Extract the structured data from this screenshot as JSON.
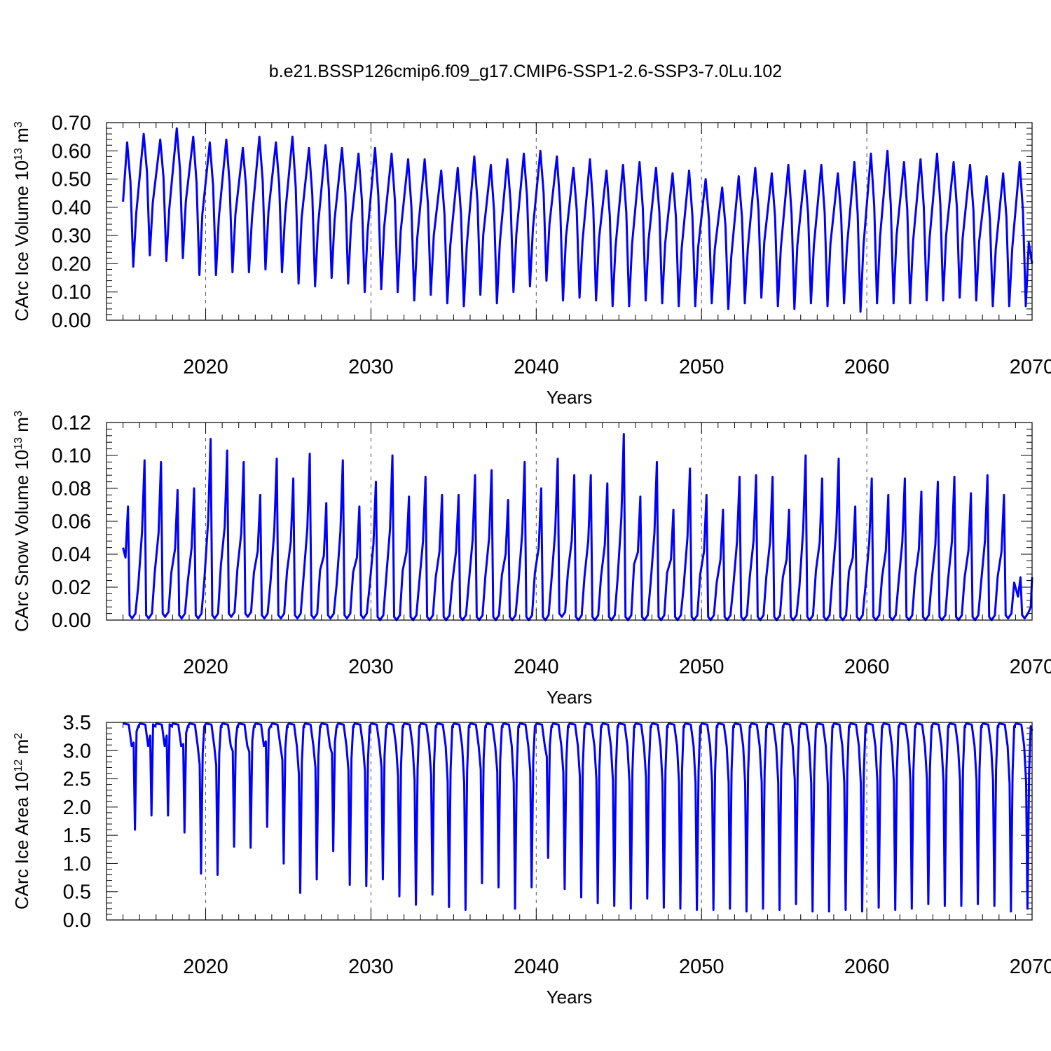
{
  "chart_data": [
    {
      "type": "line",
      "title": "b.e21.BSSP126cmip6.f09_g17.CMIP6-SSP1-2.6-SSP3-7.0Lu.102",
      "xlabel": "Years",
      "ylabel": {
        "main": "CArc Ice Volume 10",
        "exp": "13",
        "unit": " m",
        "unit_exp": "3"
      },
      "xlim": [
        2014,
        2070
      ],
      "ylim": [
        0,
        0.7
      ],
      "xticks": [
        2020,
        2030,
        2040,
        2050,
        2060,
        2070
      ],
      "xtick_labels": [
        "2020",
        "2030",
        "2040",
        "2050",
        "2060",
        "2070"
      ],
      "yticks": [
        0,
        0.1,
        0.2,
        0.3,
        0.4,
        0.5,
        0.6,
        0.7
      ],
      "ytick_labels": [
        "0.00",
        "0.10",
        "0.20",
        "0.30",
        "0.40",
        "0.50",
        "0.60",
        "0.70"
      ],
      "grid": "vertical dashed at decades",
      "color": "#0000ff",
      "series": [
        {
          "name": "Ice Volume",
          "start": 2015,
          "start_value": 0.42,
          "annual_max": [
            0.63,
            0.66,
            0.64,
            0.68,
            0.65,
            0.63,
            0.64,
            0.61,
            0.65,
            0.63,
            0.65,
            0.61,
            0.62,
            0.61,
            0.59,
            0.61,
            0.59,
            0.57,
            0.57,
            0.53,
            0.54,
            0.58,
            0.55,
            0.57,
            0.59,
            0.6,
            0.58,
            0.54,
            0.57,
            0.53,
            0.55,
            0.56,
            0.54,
            0.52,
            0.53,
            0.5,
            0.47,
            0.51,
            0.54,
            0.52,
            0.55,
            0.53,
            0.55,
            0.52,
            0.56,
            0.59,
            0.6,
            0.56,
            0.57,
            0.59,
            0.56,
            0.55,
            0.51,
            0.52,
            0.56
          ],
          "annual_min": [
            0.19,
            0.23,
            0.21,
            0.22,
            0.16,
            0.16,
            0.17,
            0.17,
            0.18,
            0.17,
            0.13,
            0.12,
            0.15,
            0.13,
            0.1,
            0.11,
            0.1,
            0.07,
            0.09,
            0.06,
            0.05,
            0.09,
            0.06,
            0.1,
            0.12,
            0.14,
            0.07,
            0.08,
            0.07,
            0.05,
            0.05,
            0.07,
            0.06,
            0.05,
            0.05,
            0.06,
            0.04,
            0.06,
            0.08,
            0.05,
            0.04,
            0.06,
            0.05,
            0.06,
            0.03,
            0.06,
            0.06,
            0.06,
            0.07,
            0.07,
            0.08,
            0.07,
            0.05,
            0.05,
            0.05
          ],
          "end_value": 0.2
        }
      ]
    },
    {
      "type": "line",
      "title": "",
      "xlabel": "Years",
      "ylabel": {
        "main": "CArc Snow Volume 10",
        "exp": "13",
        "unit": " m",
        "unit_exp": "3"
      },
      "xlim": [
        2014,
        2070
      ],
      "ylim": [
        0,
        0.12
      ],
      "xticks": [
        2020,
        2030,
        2040,
        2050,
        2060,
        2070
      ],
      "xtick_labels": [
        "2020",
        "2030",
        "2040",
        "2050",
        "2060",
        "2070"
      ],
      "yticks": [
        0,
        0.02,
        0.04,
        0.06,
        0.08,
        0.1,
        0.12
      ],
      "ytick_labels": [
        "0.00",
        "0.02",
        "0.04",
        "0.06",
        "0.08",
        "0.10",
        "0.12"
      ],
      "grid": "vertical dashed at decades",
      "color": "#0000ff",
      "series": [
        {
          "name": "Snow Volume",
          "start": 2015,
          "start_value": 0.044,
          "annual_max": [
            0.069,
            0.097,
            0.096,
            0.079,
            0.08,
            0.11,
            0.103,
            0.096,
            0.076,
            0.098,
            0.086,
            0.101,
            0.071,
            0.097,
            0.069,
            0.084,
            0.1,
            0.075,
            0.087,
            0.076,
            0.076,
            0.088,
            0.091,
            0.073,
            0.096,
            0.08,
            0.098,
            0.088,
            0.088,
            0.083,
            0.113,
            0.075,
            0.096,
            0.067,
            0.092,
            0.076,
            0.067,
            0.087,
            0.088,
            0.087,
            0.067,
            0.1,
            0.086,
            0.098,
            0.069,
            0.086,
            0.076,
            0.086,
            0.078,
            0.084,
            0.087,
            0.077,
            0.088,
            0.076,
            0.026
          ],
          "annual_min": [
            0.001,
            0.001,
            0.002,
            0.001,
            0.001,
            0.001,
            0.002,
            0.002,
            0.001,
            0.001,
            0.001,
            0.001,
            0.001,
            0.001,
            0.001,
            0.0,
            0.0,
            0.0,
            0.0,
            0.0,
            0.0,
            0.0,
            0.0,
            0.0,
            0.0,
            0.0,
            0.002,
            0.0,
            0.0,
            0.0,
            0.0,
            0.0,
            0.0,
            0.0,
            0.0,
            0.0,
            0.0,
            0.0,
            0.0,
            0.0,
            0.0,
            0.0,
            0.0,
            0.0,
            0.0,
            0.0,
            0.0,
            0.0,
            0.0,
            0.0,
            0.0,
            0.0,
            0.0,
            0.001,
            0.001
          ],
          "end_value": 0.026
        }
      ]
    },
    {
      "type": "line",
      "title": "",
      "xlabel": "Years",
      "ylabel": {
        "main": "CArc Ice Area 10",
        "exp": "12",
        "unit": " m",
        "unit_exp": "2"
      },
      "xlim": [
        2014,
        2070
      ],
      "ylim": [
        0,
        3.5
      ],
      "xticks": [
        2020,
        2030,
        2040,
        2050,
        2060,
        2070
      ],
      "xtick_labels": [
        "2020",
        "2030",
        "2040",
        "2050",
        "2060",
        "2070"
      ],
      "yticks": [
        0,
        0.5,
        1,
        1.5,
        2,
        2.5,
        3,
        3.5
      ],
      "ytick_labels": [
        "0.0",
        "0.5",
        "1.0",
        "1.5",
        "2.0",
        "2.5",
        "3.0",
        "3.5"
      ],
      "grid": "vertical dashed at decades",
      "color": "#0000ff",
      "series": [
        {
          "name": "Ice Area",
          "start": 2015,
          "start_value": 3.48,
          "annual_max": [
            3.48,
            3.48,
            3.48,
            3.48,
            3.48,
            3.48,
            3.48,
            3.48,
            3.48,
            3.48,
            3.48,
            3.48,
            3.48,
            3.48,
            3.48,
            3.48,
            3.48,
            3.48,
            3.48,
            3.48,
            3.48,
            3.48,
            3.48,
            3.48,
            3.48,
            3.48,
            3.48,
            3.48,
            3.48,
            3.48,
            3.48,
            3.48,
            3.48,
            3.48,
            3.48,
            3.48,
            3.48,
            3.48,
            3.48,
            3.48,
            3.48,
            3.48,
            3.48,
            3.48,
            3.48,
            3.48,
            3.48,
            3.48,
            3.48,
            3.48,
            3.48,
            3.48,
            3.48,
            3.48,
            3.48
          ],
          "annual_min": [
            1.6,
            1.85,
            1.85,
            1.55,
            0.82,
            0.8,
            1.3,
            1.28,
            1.65,
            1.0,
            0.48,
            0.72,
            1.22,
            0.62,
            0.6,
            0.72,
            0.42,
            0.27,
            0.45,
            0.23,
            0.18,
            0.65,
            0.58,
            0.2,
            0.58,
            1.1,
            0.55,
            0.4,
            0.3,
            0.25,
            0.2,
            0.38,
            0.22,
            0.2,
            0.18,
            0.18,
            0.2,
            0.15,
            0.2,
            0.18,
            0.28,
            0.15,
            0.15,
            0.18,
            0.15,
            0.22,
            0.18,
            0.2,
            0.28,
            0.25,
            0.25,
            0.28,
            0.25,
            0.15,
            0.2
          ],
          "end_value": 3.35
        }
      ]
    }
  ]
}
